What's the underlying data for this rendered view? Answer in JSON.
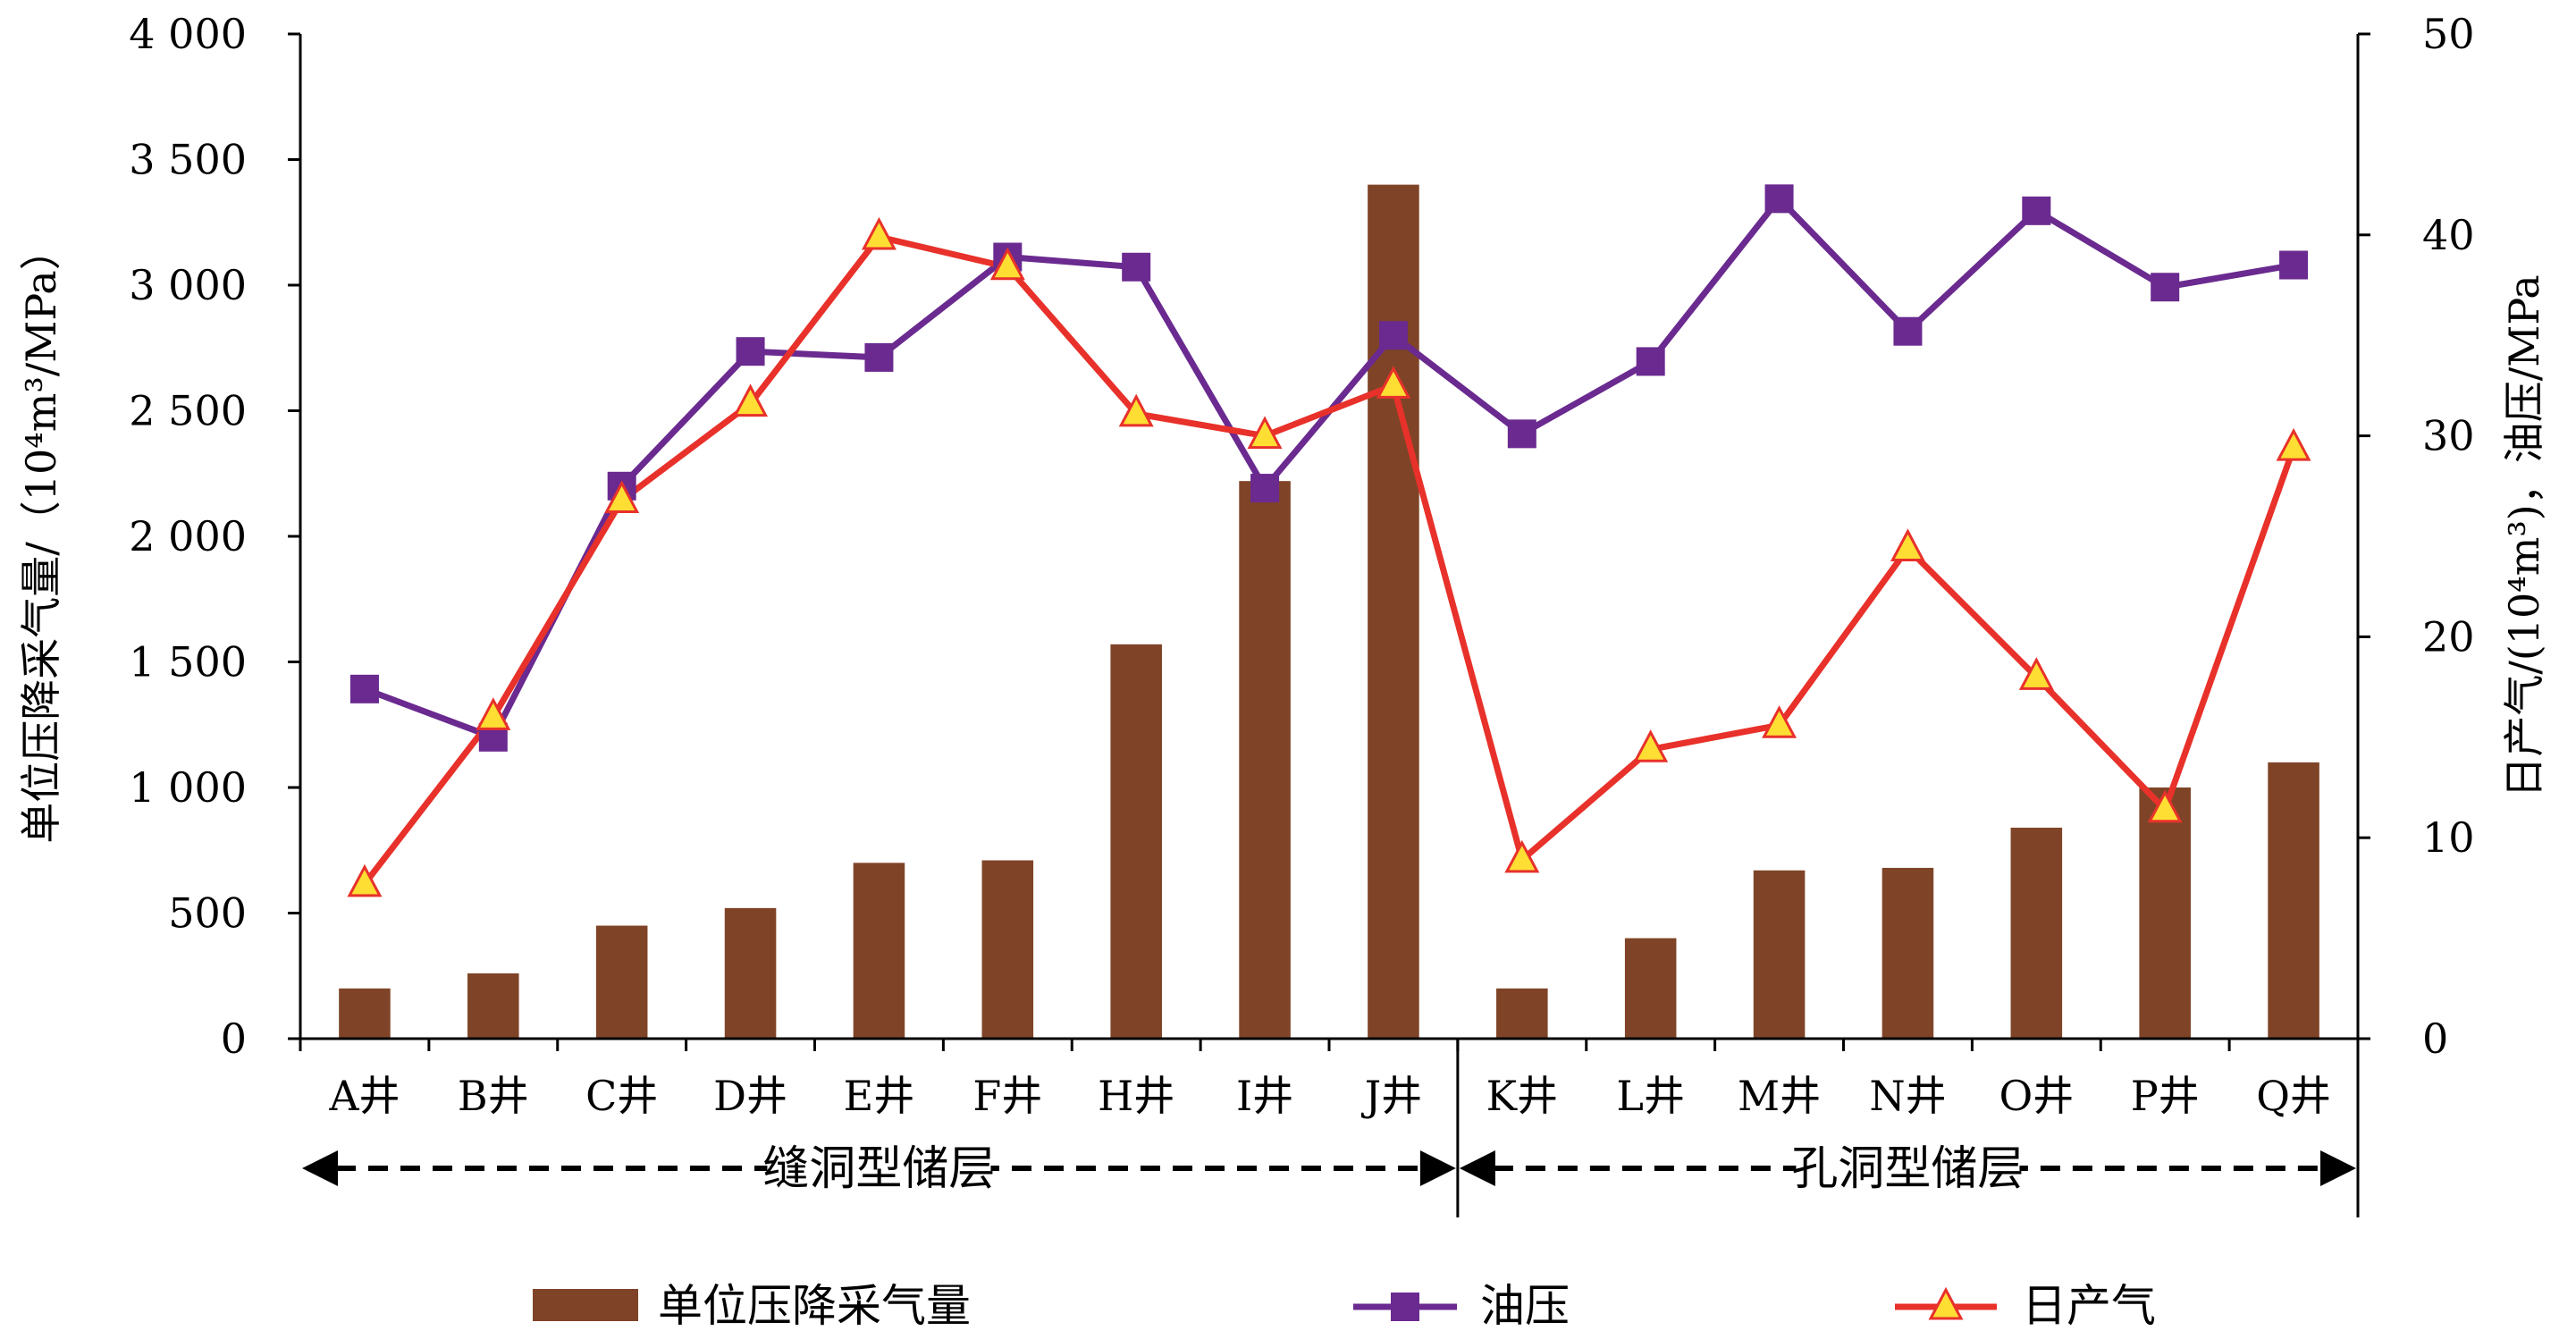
{
  "chart_data": {
    "type": "bar+line",
    "categories": [
      "A井",
      "B井",
      "C井",
      "D井",
      "E井",
      "F井",
      "H井",
      "I井",
      "J井",
      "K井",
      "L井",
      "M井",
      "N井",
      "O井",
      "P井",
      "Q井"
    ],
    "groups": [
      {
        "label": "缝洞型储层",
        "from": 0,
        "to": 8
      },
      {
        "label": "孔洞型储层",
        "from": 9,
        "to": 15
      }
    ],
    "left_axis": {
      "label": "单位压降采气量/（10⁴m³/MPa）",
      "range": [
        0,
        4000
      ],
      "ticks": [
        0,
        500,
        1000,
        1500,
        2000,
        2500,
        3000,
        3500,
        4000
      ],
      "tick_labels": [
        "0",
        "500",
        "1 000",
        "1 500",
        "2 000",
        "2 500",
        "3 000",
        "3 500",
        "4 000"
      ]
    },
    "right_axis": {
      "label": "日产气/(10⁴m³)，油压/MPa",
      "range": [
        0,
        50
      ],
      "ticks": [
        0,
        10,
        20,
        30,
        40,
        50
      ],
      "tick_labels": [
        "0",
        "10",
        "20",
        "30",
        "40",
        "50"
      ]
    },
    "series": [
      {
        "name": "单位压降采气量",
        "kind": "bar",
        "axis": "left",
        "color": "#7f4427",
        "values": [
          200,
          260,
          450,
          520,
          700,
          710,
          1570,
          2220,
          3400,
          200,
          400,
          670,
          680,
          840,
          1000,
          1100
        ]
      },
      {
        "name": "油压",
        "kind": "line",
        "axis": "right",
        "color": "#6a2a8f",
        "marker": "square",
        "values": [
          17.4,
          15.0,
          27.5,
          34.2,
          33.9,
          38.9,
          38.4,
          27.4,
          35.0,
          30.1,
          33.7,
          41.8,
          35.2,
          41.2,
          37.4,
          38.5
        ]
      },
      {
        "name": "日产气",
        "kind": "line",
        "axis": "right",
        "color": "#e8312a",
        "marker": "triangle",
        "marker_fill": "#ffde33",
        "values": [
          7.7,
          16.0,
          26.8,
          31.6,
          39.9,
          38.4,
          31.1,
          30.0,
          32.5,
          8.9,
          14.4,
          15.6,
          24.4,
          18.0,
          11.4,
          29.4
        ]
      }
    ],
    "legend": {
      "position": "bottom"
    }
  }
}
